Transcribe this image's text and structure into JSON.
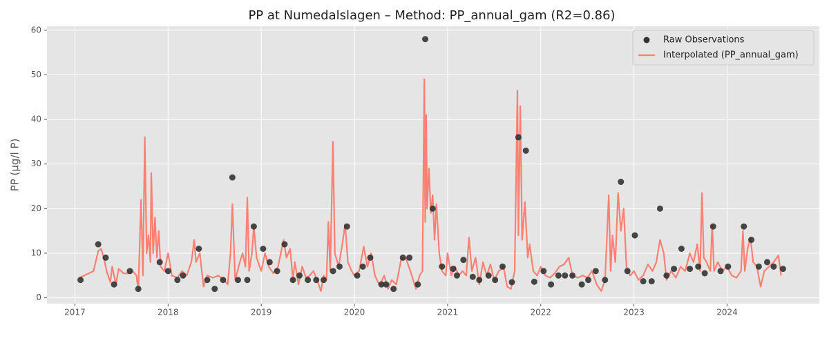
{
  "chart_data": {
    "type": "line",
    "title": "PP at Numedalslagen – Method: PP_annual_gam (R2=0.86)",
    "y_label": "PP (µg/l P)",
    "xlim": [
      2016.7,
      2024.99
    ],
    "xticks": [
      2017,
      2018,
      2019,
      2020,
      2021,
      2022,
      2023,
      2024
    ],
    "ylim": [
      -1.3,
      60.9
    ],
    "yticks": [
      0,
      10,
      20,
      30,
      40,
      50,
      60
    ],
    "grid": true,
    "legend": "upper right",
    "series": [
      {
        "name": "Raw Observations",
        "type": "scatter",
        "color": "#333333",
        "x": [
          2017.06,
          2017.25,
          2017.33,
          2017.42,
          2017.59,
          2017.68,
          2017.91,
          2018.0,
          2018.1,
          2018.16,
          2018.33,
          2018.42,
          2018.5,
          2018.59,
          2018.69,
          2018.75,
          2018.85,
          2018.92,
          2019.02,
          2019.09,
          2019.17,
          2019.25,
          2019.34,
          2019.41,
          2019.5,
          2019.59,
          2019.67,
          2019.77,
          2019.84,
          2019.92,
          2020.03,
          2020.09,
          2020.17,
          2020.29,
          2020.34,
          2020.42,
          2020.52,
          2020.59,
          2020.68,
          2020.76,
          2020.84,
          2020.94,
          2021.06,
          2021.1,
          2021.17,
          2021.27,
          2021.34,
          2021.44,
          2021.51,
          2021.59,
          2021.69,
          2021.76,
          2021.84,
          2021.93,
          2022.03,
          2022.11,
          2022.19,
          2022.26,
          2022.34,
          2022.44,
          2022.51,
          2022.59,
          2022.69,
          2022.86,
          2022.93,
          2023.01,
          2023.1,
          2023.19,
          2023.28,
          2023.35,
          2023.43,
          2023.51,
          2023.6,
          2023.69,
          2023.76,
          2023.85,
          2023.93,
          2024.01,
          2024.18,
          2024.26,
          2024.34,
          2024.43,
          2024.5,
          2024.6
        ],
        "values": [
          4,
          12,
          9,
          3,
          6,
          2,
          8,
          6,
          4,
          5,
          11,
          4,
          2,
          4,
          27,
          4,
          4,
          16,
          11,
          8,
          6,
          12,
          4,
          5,
          4,
          4,
          4,
          6,
          7,
          16,
          5,
          7,
          9,
          3,
          3,
          2,
          9,
          9,
          3,
          58,
          20,
          7,
          6.5,
          5,
          8.5,
          4.7,
          4,
          5,
          4,
          7,
          3.5,
          36,
          33,
          3.6,
          6,
          3,
          5,
          5,
          5,
          3,
          4,
          6,
          4,
          26,
          6,
          14,
          3.7,
          3.7,
          20,
          5,
          6.5,
          11,
          6.5,
          7,
          5.5,
          16,
          6,
          7,
          16,
          13,
          7,
          8,
          7,
          6.5
        ]
      },
      {
        "name": "Interpolated (PP_annual_gam)",
        "type": "line",
        "color": "#fa8072",
        "x": [
          2017.05,
          2017.1,
          2017.15,
          2017.2,
          2017.25,
          2017.28,
          2017.31,
          2017.34,
          2017.38,
          2017.4,
          2017.44,
          2017.47,
          2017.52,
          2017.58,
          2017.62,
          2017.66,
          2017.68,
          2017.71,
          2017.73,
          2017.75,
          2017.77,
          2017.79,
          2017.81,
          2017.82,
          2017.84,
          2017.86,
          2017.88,
          2017.9,
          2017.92,
          2017.96,
          2018.0,
          2018.04,
          2018.1,
          2018.15,
          2018.2,
          2018.25,
          2018.28,
          2018.3,
          2018.34,
          2018.38,
          2018.42,
          2018.48,
          2018.54,
          2018.6,
          2018.64,
          2018.67,
          2018.69,
          2018.72,
          2018.77,
          2018.8,
          2018.83,
          2018.85,
          2018.87,
          2018.9,
          2018.92,
          2018.95,
          2019.0,
          2019.04,
          2019.08,
          2019.13,
          2019.18,
          2019.24,
          2019.27,
          2019.31,
          2019.34,
          2019.36,
          2019.4,
          2019.44,
          2019.48,
          2019.52,
          2019.56,
          2019.6,
          2019.64,
          2019.67,
          2019.7,
          2019.72,
          2019.74,
          2019.77,
          2019.79,
          2019.83,
          2019.87,
          2019.9,
          2019.93,
          2019.97,
          2020.0,
          2020.05,
          2020.1,
          2020.14,
          2020.18,
          2020.22,
          2020.27,
          2020.32,
          2020.36,
          2020.4,
          2020.45,
          2020.5,
          2020.55,
          2020.6,
          2020.66,
          2020.7,
          2020.73,
          2020.75,
          2020.76,
          2020.77,
          2020.78,
          2020.8,
          2020.82,
          2020.84,
          2020.86,
          2020.88,
          2020.91,
          2020.94,
          2020.98,
          2021.0,
          2021.04,
          2021.08,
          2021.12,
          2021.16,
          2021.2,
          2021.23,
          2021.26,
          2021.3,
          2021.34,
          2021.38,
          2021.42,
          2021.46,
          2021.5,
          2021.55,
          2021.6,
          2021.64,
          2021.68,
          2021.72,
          2021.75,
          2021.76,
          2021.78,
          2021.8,
          2021.83,
          2021.86,
          2021.88,
          2021.92,
          2021.96,
          2022.0,
          2022.05,
          2022.1,
          2022.15,
          2022.2,
          2022.25,
          2022.3,
          2022.34,
          2022.4,
          2022.45,
          2022.5,
          2022.55,
          2022.6,
          2022.65,
          2022.69,
          2022.73,
          2022.75,
          2022.77,
          2022.8,
          2022.83,
          2022.86,
          2022.89,
          2022.92,
          2022.96,
          2023.0,
          2023.05,
          2023.1,
          2023.15,
          2023.2,
          2023.24,
          2023.28,
          2023.32,
          2023.35,
          2023.4,
          2023.45,
          2023.5,
          2023.55,
          2023.6,
          2023.64,
          2023.68,
          2023.71,
          2023.73,
          2023.75,
          2023.78,
          2023.82,
          2023.84,
          2023.86,
          2023.9,
          2023.95,
          2024.0,
          2024.05,
          2024.1,
          2024.15,
          2024.17,
          2024.19,
          2024.22,
          2024.25,
          2024.28,
          2024.32,
          2024.36,
          2024.4,
          2024.45,
          2024.5,
          2024.55,
          2024.58
        ],
        "values": [
          4.5,
          5,
          5.5,
          6,
          10.5,
          11,
          9,
          6,
          3.5,
          7,
          3,
          6.5,
          5.5,
          5.5,
          6,
          5,
          1.8,
          22,
          5,
          36,
          10,
          14,
          8,
          28,
          10,
          18,
          9,
          15,
          7,
          6,
          10,
          5,
          4.5,
          6,
          5,
          8,
          13,
          8,
          10,
          2.5,
          5,
          4.5,
          5,
          4,
          3,
          10,
          21,
          4,
          8,
          10,
          7,
          22.5,
          6,
          10,
          16,
          9,
          6,
          10,
          7,
          5.5,
          7,
          13,
          9,
          11,
          4,
          8,
          3,
          7,
          4.5,
          5,
          6,
          4,
          1.5,
          5,
          4,
          17,
          6,
          35,
          10,
          7,
          12,
          16.5,
          8,
          6,
          5,
          6,
          11.5,
          7,
          10,
          5,
          2.8,
          5,
          2,
          4,
          3,
          8.5,
          9,
          6,
          2,
          5,
          6,
          49,
          17,
          41,
          20,
          29,
          19,
          23,
          13,
          21,
          10,
          6,
          5,
          10,
          5,
          7,
          5,
          6,
          5,
          13.5,
          6,
          9,
          3,
          8,
          5,
          7.5,
          4,
          6,
          7,
          2.5,
          2,
          6,
          46.5,
          14,
          43,
          13,
          21.5,
          9,
          12,
          6,
          5,
          7,
          5,
          4.5,
          5.5,
          7,
          7.5,
          9,
          5,
          4.5,
          5,
          4.5,
          6,
          3,
          1.5,
          4,
          23,
          6,
          14,
          8,
          23.5,
          15,
          20,
          7,
          5,
          6,
          4,
          5,
          7.5,
          6,
          8,
          13,
          10,
          4,
          6,
          4.5,
          7,
          6,
          10,
          8,
          12,
          6,
          23.5,
          9,
          8,
          6,
          16.5,
          6,
          8,
          6,
          7,
          5,
          4.5,
          6,
          15,
          6,
          11,
          13.5,
          8,
          7,
          2.5,
          6,
          7,
          8,
          9.5,
          5
        ]
      }
    ]
  }
}
